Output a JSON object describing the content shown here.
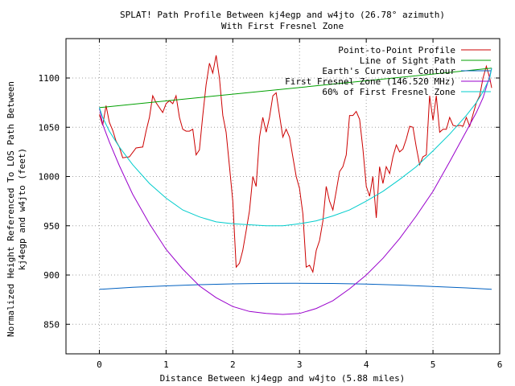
{
  "chart_data": {
    "type": "line",
    "title": "SPLAT! Path Profile Between kj4egp and w4jto (26.78° azimuth)",
    "subtitle": "With First Fresnel Zone",
    "xlabel": "Distance Between kj4egp and w4jto (5.88 miles)",
    "ylabel_line1": "Normalized Height Referenced To LOS Path Between",
    "ylabel_line2": "kj4egp and w4jto (feet)",
    "xlim": [
      -0.5,
      6
    ],
    "ylim": [
      820,
      1140
    ],
    "x_ticks": [
      0,
      1,
      2,
      3,
      4,
      5,
      6
    ],
    "y_ticks": [
      850,
      900,
      950,
      1000,
      1050,
      1100
    ],
    "x_tick_labels": [
      "0",
      "1",
      "2",
      "3",
      "4",
      "5",
      "6"
    ],
    "y_tick_labels": [
      "850",
      "900",
      "950",
      "1000",
      "1050",
      "1100"
    ],
    "grid": true,
    "legend_position": "top-right",
    "series": [
      {
        "name": "Point-to-Point Profile",
        "color": "#cc0000",
        "points": [
          [
            0,
            1063
          ],
          [
            0.05,
            1052
          ],
          [
            0.1,
            1072
          ],
          [
            0.15,
            1055
          ],
          [
            0.2,
            1047
          ],
          [
            0.25,
            1036
          ],
          [
            0.3,
            1030
          ],
          [
            0.35,
            1019
          ],
          [
            0.45,
            1020
          ],
          [
            0.55,
            1029
          ],
          [
            0.65,
            1030
          ],
          [
            0.7,
            1046
          ],
          [
            0.75,
            1060
          ],
          [
            0.8,
            1082
          ],
          [
            0.85,
            1075
          ],
          [
            0.95,
            1065
          ],
          [
            1.0,
            1074
          ],
          [
            1.05,
            1077
          ],
          [
            1.1,
            1074
          ],
          [
            1.15,
            1082
          ],
          [
            1.2,
            1060
          ],
          [
            1.25,
            1048
          ],
          [
            1.3,
            1046
          ],
          [
            1.35,
            1046
          ],
          [
            1.4,
            1048
          ],
          [
            1.45,
            1022
          ],
          [
            1.5,
            1027
          ],
          [
            1.55,
            1062
          ],
          [
            1.6,
            1093
          ],
          [
            1.65,
            1115
          ],
          [
            1.7,
            1105
          ],
          [
            1.75,
            1123
          ],
          [
            1.8,
            1100
          ],
          [
            1.85,
            1062
          ],
          [
            1.9,
            1045
          ],
          [
            1.95,
            1010
          ],
          [
            2.0,
            975
          ],
          [
            2.05,
            908
          ],
          [
            2.1,
            912
          ],
          [
            2.15,
            925
          ],
          [
            2.2,
            945
          ],
          [
            2.25,
            965
          ],
          [
            2.3,
            1000
          ],
          [
            2.35,
            990
          ],
          [
            2.4,
            1040
          ],
          [
            2.45,
            1060
          ],
          [
            2.5,
            1045
          ],
          [
            2.55,
            1060
          ],
          [
            2.6,
            1082
          ],
          [
            2.65,
            1085
          ],
          [
            2.7,
            1062
          ],
          [
            2.75,
            1040
          ],
          [
            2.8,
            1048
          ],
          [
            2.85,
            1040
          ],
          [
            2.9,
            1020
          ],
          [
            2.95,
            1000
          ],
          [
            3.0,
            988
          ],
          [
            3.05,
            962
          ],
          [
            3.1,
            908
          ],
          [
            3.15,
            910
          ],
          [
            3.2,
            903
          ],
          [
            3.25,
            925
          ],
          [
            3.3,
            935
          ],
          [
            3.35,
            955
          ],
          [
            3.4,
            990
          ],
          [
            3.45,
            975
          ],
          [
            3.5,
            966
          ],
          [
            3.55,
            985
          ],
          [
            3.6,
            1005
          ],
          [
            3.65,
            1010
          ],
          [
            3.7,
            1022
          ],
          [
            3.75,
            1062
          ],
          [
            3.8,
            1062
          ],
          [
            3.85,
            1066
          ],
          [
            3.9,
            1058
          ],
          [
            3.95,
            1028
          ],
          [
            4.0,
            990
          ],
          [
            4.05,
            980
          ],
          [
            4.1,
            1000
          ],
          [
            4.15,
            958
          ],
          [
            4.2,
            1010
          ],
          [
            4.25,
            993
          ],
          [
            4.3,
            1010
          ],
          [
            4.35,
            1003
          ],
          [
            4.4,
            1020
          ],
          [
            4.45,
            1032
          ],
          [
            4.5,
            1025
          ],
          [
            4.55,
            1028
          ],
          [
            4.6,
            1038
          ],
          [
            4.65,
            1051
          ],
          [
            4.7,
            1050
          ],
          [
            4.75,
            1030
          ],
          [
            4.8,
            1012
          ],
          [
            4.85,
            1020
          ],
          [
            4.9,
            1022
          ],
          [
            4.95,
            1082
          ],
          [
            5.0,
            1057
          ],
          [
            5.05,
            1082
          ],
          [
            5.1,
            1045
          ],
          [
            5.15,
            1048
          ],
          [
            5.2,
            1048
          ],
          [
            5.25,
            1060
          ],
          [
            5.3,
            1052
          ],
          [
            5.35,
            1051
          ],
          [
            5.4,
            1052
          ],
          [
            5.45,
            1051
          ],
          [
            5.5,
            1060
          ],
          [
            5.55,
            1051
          ],
          [
            5.6,
            1063
          ],
          [
            5.65,
            1075
          ],
          [
            5.7,
            1082
          ],
          [
            5.75,
            1100
          ],
          [
            5.8,
            1112
          ],
          [
            5.85,
            1100
          ],
          [
            5.88,
            1090
          ]
        ]
      },
      {
        "name": "Line of Sight Path",
        "color": "#00a000",
        "points": [
          [
            0,
            1070
          ],
          [
            5.88,
            1110
          ]
        ]
      },
      {
        "name": "Earth's Curvature Contour",
        "color": "#0060c0",
        "points": [
          [
            0,
            885.5
          ],
          [
            0.5,
            887.5
          ],
          [
            1,
            889
          ],
          [
            1.5,
            890.2
          ],
          [
            2,
            891
          ],
          [
            2.5,
            891.5
          ],
          [
            2.94,
            891.6
          ],
          [
            3.5,
            891.4
          ],
          [
            4,
            890.8
          ],
          [
            4.5,
            889.8
          ],
          [
            5,
            888.4
          ],
          [
            5.5,
            886.9
          ],
          [
            5.88,
            885.5
          ]
        ]
      },
      {
        "name": "First Fresnel Zone (146.520 MHz)",
        "color": "#9900cc",
        "points": [
          [
            0,
            1070
          ],
          [
            0.05,
            1053
          ],
          [
            0.15,
            1035
          ],
          [
            0.3,
            1011
          ],
          [
            0.5,
            982
          ],
          [
            0.75,
            952
          ],
          [
            1.0,
            926
          ],
          [
            1.25,
            906
          ],
          [
            1.5,
            889
          ],
          [
            1.75,
            877
          ],
          [
            2.0,
            868
          ],
          [
            2.25,
            863
          ],
          [
            2.5,
            861
          ],
          [
            2.75,
            860
          ],
          [
            3.0,
            861
          ],
          [
            3.25,
            866
          ],
          [
            3.5,
            874
          ],
          [
            3.75,
            886
          ],
          [
            4.0,
            900
          ],
          [
            4.25,
            917
          ],
          [
            4.5,
            937
          ],
          [
            4.75,
            960
          ],
          [
            5.0,
            985
          ],
          [
            5.25,
            1015
          ],
          [
            5.5,
            1046
          ],
          [
            5.65,
            1065
          ],
          [
            5.75,
            1080
          ],
          [
            5.85,
            1102
          ],
          [
            5.88,
            1110
          ]
        ]
      },
      {
        "name": "60% of First Fresnel Zone",
        "color": "#00cccc",
        "points": [
          [
            0,
            1070
          ],
          [
            0.05,
            1060
          ],
          [
            0.15,
            1046
          ],
          [
            0.3,
            1030
          ],
          [
            0.5,
            1012
          ],
          [
            0.75,
            993
          ],
          [
            1.0,
            978
          ],
          [
            1.25,
            966
          ],
          [
            1.5,
            959
          ],
          [
            1.75,
            954
          ],
          [
            2.0,
            952
          ],
          [
            2.25,
            951
          ],
          [
            2.5,
            950
          ],
          [
            2.75,
            950
          ],
          [
            3.0,
            952
          ],
          [
            3.25,
            955
          ],
          [
            3.5,
            960
          ],
          [
            3.75,
            966
          ],
          [
            4.0,
            975
          ],
          [
            4.25,
            985
          ],
          [
            4.5,
            997
          ],
          [
            4.75,
            1010
          ],
          [
            5.0,
            1026
          ],
          [
            5.25,
            1043
          ],
          [
            5.5,
            1062
          ],
          [
            5.65,
            1075
          ],
          [
            5.75,
            1086
          ],
          [
            5.85,
            1100
          ],
          [
            5.88,
            1110
          ]
        ]
      }
    ]
  }
}
